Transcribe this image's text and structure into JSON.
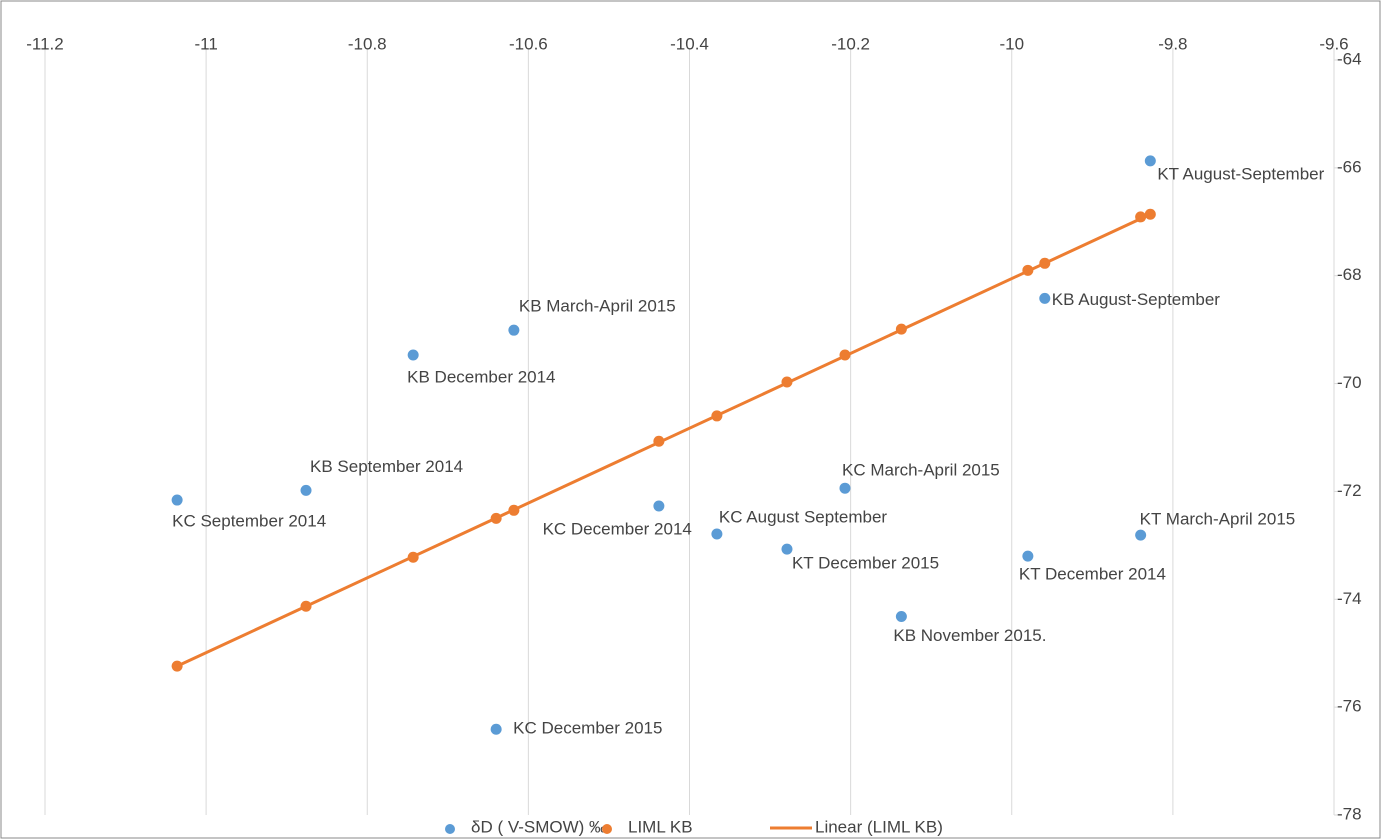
{
  "chart_data": {
    "type": "scatter",
    "xlim": [
      -11.2,
      -9.6
    ],
    "xticks": [
      -11.2,
      -11,
      -10.8,
      -10.6,
      -10.4,
      -10.2,
      -10,
      -9.8,
      -9.6
    ],
    "ylim": [
      -78,
      -64
    ],
    "yticks": [
      -64,
      -66,
      -68,
      -70,
      -72,
      -74,
      -76,
      -78
    ],
    "grid": true,
    "legend": "bottom",
    "series": [
      {
        "name": "δD ( V-SMOW) ‰",
        "color": "#5b9bd5",
        "x": [
          -9.828,
          -9.959,
          -10.618,
          -10.743,
          -10.876,
          -11.036,
          -10.438,
          -10.207,
          -10.366,
          -10.279,
          -9.98,
          -9.84,
          -10.137,
          -10.64
        ],
        "values": [
          -65.87,
          -68.42,
          -69.01,
          -69.47,
          -71.98,
          -72.16,
          -72.27,
          -71.94,
          -72.79,
          -73.07,
          -73.2,
          -72.81,
          -74.32,
          -76.41
        ],
        "labels": [
          "KT August-September",
          "KB August-September",
          "KB March-April 2015",
          "KB December 2014",
          "KB September 2014",
          "KC September 2014",
          "KC December 2014",
          "KC March-April 2015",
          "KC August September",
          "KT December 2015",
          "KT December 2014",
          "KT March-April 2015",
          "KB November 2015.",
          "KC December 2015"
        ]
      },
      {
        "name": "LIML KB",
        "color": "#ed7d31",
        "x": [
          -11.036,
          -10.876,
          -10.743,
          -10.64,
          -10.618,
          -10.438,
          -10.366,
          -10.279,
          -10.207,
          -10.137,
          -9.98,
          -9.959,
          -9.84,
          -9.828
        ],
        "values": [
          -75.24,
          -74.13,
          -73.22,
          -72.5,
          -72.35,
          -71.07,
          -70.6,
          -69.97,
          -69.47,
          -68.99,
          -67.9,
          -67.77,
          -66.91,
          -66.86
        ]
      },
      {
        "name": "Linear (LIML KB)",
        "color": "#ed7d31",
        "type": "line",
        "x": [
          -11.036,
          -9.828
        ],
        "values": [
          -75.24,
          -66.86
        ]
      }
    ]
  }
}
